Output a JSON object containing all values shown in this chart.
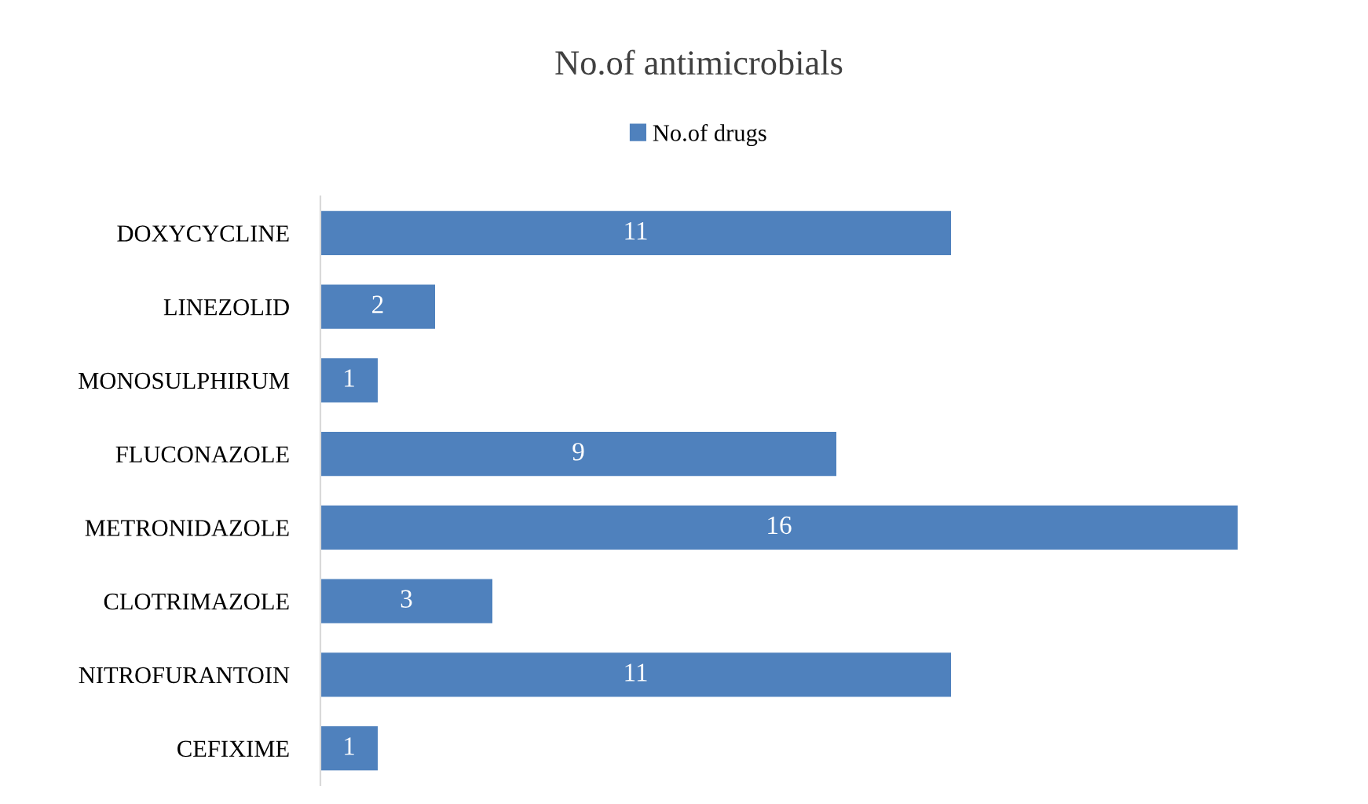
{
  "chart_data": {
    "type": "bar",
    "orientation": "horizontal",
    "title": "No.of antimicrobials",
    "categories": [
      "DOXYCYCLINE",
      "LINEZOLID",
      "MONOSULPHIRUM",
      "FLUCONAZOLE",
      "METRONIDAZOLE",
      "CLOTRIMAZOLE",
      "NITROFURANTOIN",
      "CEFIXIME"
    ],
    "series": [
      {
        "name": "No.of drugs",
        "color": "#4f81bd",
        "values": [
          11,
          2,
          1,
          9,
          16,
          3,
          11,
          1
        ]
      }
    ],
    "data_labels": true,
    "legend": "top",
    "grid": false
  }
}
